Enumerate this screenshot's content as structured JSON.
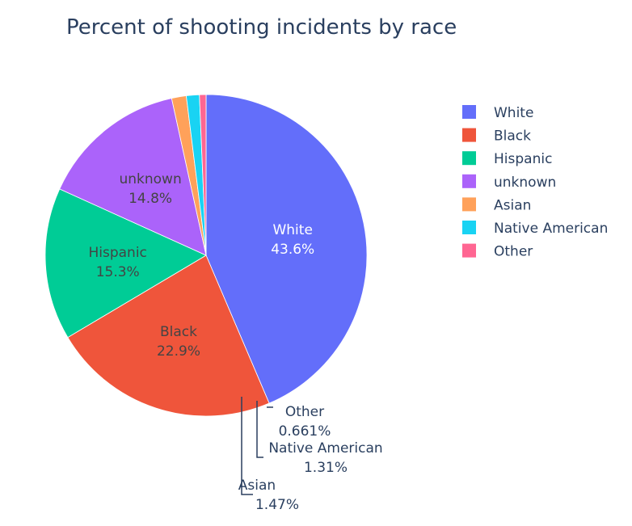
{
  "chart_data": {
    "type": "pie",
    "title": "Percent of shooting incidents by race",
    "labels": [
      "White",
      "Black",
      "Hispanic",
      "unknown",
      "Asian",
      "Native American",
      "Other"
    ],
    "values": [
      43.6,
      22.9,
      15.3,
      14.8,
      1.47,
      1.31,
      0.661
    ],
    "percent_labels": [
      "43.6%",
      "22.9%",
      "15.3%",
      "14.8%",
      "1.47%",
      "1.31%",
      "0.661%"
    ],
    "colors": [
      "#636efa",
      "#ef553b",
      "#00cc96",
      "#ab63fa",
      "#ffa15a",
      "#19d3f3",
      "#ff6692"
    ],
    "legend_placement": "right",
    "direction": "clockwise",
    "start": "top"
  }
}
